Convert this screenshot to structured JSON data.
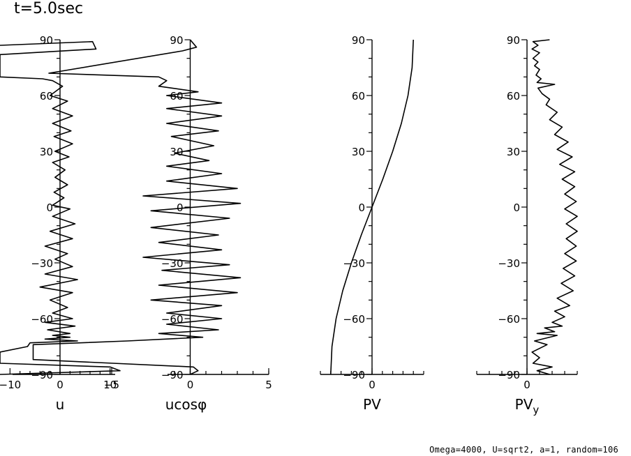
{
  "title": "t=5.0sec",
  "footer": "Omega=4000, U=sqrt2, a=1, random=106",
  "chart_data": [
    {
      "type": "line",
      "xlabel": "u",
      "ylabel": "",
      "xlim": [
        -12,
        12
      ],
      "ylim": [
        -90,
        90
      ],
      "xticks": [
        -10,
        0,
        10
      ],
      "xtick_labels": [
        "−10",
        "0",
        "10"
      ],
      "yticks": [
        -90,
        -60,
        -30,
        0,
        30,
        60,
        90
      ],
      "ytick_labels": [
        "−90",
        "−60",
        "−30",
        "0",
        "30",
        "60",
        "90"
      ],
      "series": [
        {
          "name": "u",
          "x": [
            -12,
            6.5,
            7.2,
            -12,
            -12,
            -3.5,
            -1.5,
            0.5,
            -2,
            1.5,
            -1.5,
            2.5,
            -1.5,
            2.2,
            -1.2,
            2.5,
            -1,
            1.8,
            -1.5,
            1,
            -1,
            1.5,
            -1.2,
            0.8,
            -1.5,
            2,
            -1.5,
            3,
            -2,
            2.5,
            -3,
            1.5,
            -1,
            2.5,
            -3,
            3.5,
            -4,
            2.5,
            -2,
            1.5,
            -1.5,
            2.5,
            -3,
            3,
            -2.5,
            2,
            -1.5,
            2,
            -3,
            3.5,
            -6,
            -6.5,
            -12,
            -12,
            10,
            12,
            -12
          ],
          "y": [
            87,
            89,
            85,
            82,
            70,
            69,
            68,
            65,
            60,
            57,
            53,
            49,
            45,
            41,
            38,
            34,
            30,
            27,
            24,
            20,
            16,
            12,
            8,
            5,
            1,
            -1,
            -5,
            -9,
            -13,
            -17,
            -21,
            -25,
            -28,
            -32,
            -36,
            -39,
            -43,
            -46,
            -50,
            -54,
            -57,
            -60,
            -62,
            -64,
            -66,
            -68,
            -69,
            -70,
            -71,
            -72,
            -73,
            -75,
            -78,
            -84,
            -86,
            -88,
            -90
          ]
        }
      ]
    },
    {
      "type": "line",
      "xlabel": "ucosφ",
      "ylabel": "",
      "xlim": [
        -5,
        5
      ],
      "ylim": [
        -90,
        90
      ],
      "xticks": [
        -5,
        0,
        5
      ],
      "xtick_labels": [
        "−5",
        "0",
        "5"
      ],
      "yticks": [
        -90,
        -60,
        -30,
        0,
        30,
        60,
        90
      ],
      "ytick_labels": [
        "−90",
        "−60",
        "−30",
        "0",
        "30",
        "60",
        "90"
      ],
      "series": [
        {
          "name": "ucosφ",
          "x": [
            0,
            0.4,
            -0.5,
            -9,
            -2,
            -1.5,
            -2,
            0.5,
            -1.5,
            2,
            -1.5,
            2,
            -1.5,
            1.8,
            -1.2,
            1.5,
            -1,
            1.2,
            -1.5,
            2,
            -1.5,
            3,
            -3,
            3.2,
            -2.5,
            2.5,
            -2.5,
            1.8,
            -2,
            2,
            -3,
            2.5,
            -1.8,
            3.2,
            -2,
            3,
            -2.5,
            2,
            -1.5,
            2,
            -1.5,
            1.8,
            -2,
            0.8,
            -4,
            -10,
            -10,
            0.2,
            0.5,
            0
          ],
          "y": [
            90,
            86,
            84,
            72,
            70,
            68,
            65,
            62,
            60,
            56,
            53,
            49,
            45,
            41,
            38,
            33,
            29,
            25,
            22,
            18,
            14,
            10,
            6,
            2,
            -2,
            -6,
            -11,
            -15,
            -19,
            -23,
            -27,
            -31,
            -34,
            -38,
            -42,
            -46,
            -50,
            -53,
            -57,
            -60,
            -63,
            -66,
            -68,
            -70,
            -72,
            -74,
            -82,
            -86,
            -88,
            -90
          ]
        }
      ]
    },
    {
      "type": "line",
      "xlabel": "PV",
      "ylabel": "",
      "xlim": [
        -1.25,
        1.25
      ],
      "ylim": [
        -90,
        90
      ],
      "xticks": [
        0
      ],
      "xtick_labels": [
        "0"
      ],
      "yticks": [
        -90,
        -60,
        -30,
        0,
        30,
        60,
        90
      ],
      "ytick_labels": [
        "−90",
        "−60",
        "−30",
        "0",
        "30",
        "60",
        "90"
      ],
      "series": [
        {
          "name": "PV",
          "x": [
            1.0,
            0.97,
            0.87,
            0.71,
            0.5,
            0.26,
            0,
            -0.26,
            -0.5,
            -0.71,
            -0.87,
            -0.97,
            -1.0
          ],
          "y": [
            90,
            75,
            60,
            45,
            30,
            15,
            0,
            -15,
            -30,
            -45,
            -60,
            -75,
            -90
          ]
        }
      ]
    },
    {
      "type": "line",
      "xlabel": "PVy",
      "ylabel": "",
      "xlim": [
        -1,
        1
      ],
      "ylim": [
        -90,
        90
      ],
      "xticks": [
        0
      ],
      "xtick_labels": [
        "0"
      ],
      "yticks": [
        -90,
        -60,
        -30,
        0,
        30,
        60,
        90
      ],
      "ytick_labels": [
        "−90",
        "−60",
        "−30",
        "0",
        "30",
        "60",
        "90"
      ],
      "series": [
        {
          "name": "PVy",
          "x": [
            0.45,
            0.12,
            0.22,
            0.1,
            0.25,
            0.12,
            0.22,
            0.15,
            0.25,
            0.18,
            0.28,
            0.2,
            0.55,
            0.22,
            0.3,
            0.45,
            0.38,
            0.6,
            0.45,
            0.7,
            0.55,
            0.82,
            0.6,
            0.9,
            0.65,
            0.95,
            0.7,
            0.95,
            0.75,
            0.98,
            0.75,
            1.0,
            0.78,
            1.0,
            0.78,
            0.98,
            0.75,
            0.98,
            0.72,
            0.95,
            0.68,
            0.92,
            0.6,
            0.85,
            0.55,
            0.75,
            0.5,
            0.7,
            0.35,
            0.55,
            0.2,
            0.6,
            0.15,
            0.4,
            0.1,
            0.25,
            0.12,
            0.5,
            0.2,
            0.45
          ],
          "y": [
            90,
            89,
            87,
            85,
            83,
            80,
            78,
            76,
            74,
            71,
            69,
            67,
            66,
            64,
            61,
            58,
            55,
            51,
            47,
            43,
            39,
            35,
            31,
            27,
            23,
            19,
            15,
            11,
            7,
            3,
            -1,
            -5,
            -9,
            -13,
            -17,
            -21,
            -25,
            -29,
            -33,
            -37,
            -41,
            -45,
            -49,
            -53,
            -56,
            -59,
            -62,
            -64,
            -65,
            -67,
            -68,
            -69,
            -72,
            -74,
            -78,
            -81,
            -84,
            -86,
            -88,
            -90
          ]
        }
      ]
    }
  ]
}
